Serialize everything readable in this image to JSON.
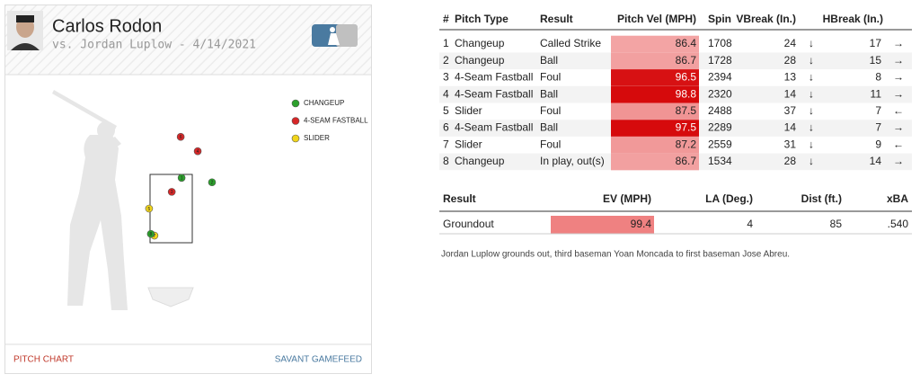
{
  "pitcher": {
    "name": "Carlos Rodon",
    "subtitle": "vs. Jordan Luplow - 4/14/2021"
  },
  "legend": [
    {
      "label": "CHANGEUP",
      "color": "#2ca02c"
    },
    {
      "label": "4-SEAM FASTBALL",
      "color": "#d62728"
    },
    {
      "label": "SLIDER",
      "color": "#f1d51b"
    }
  ],
  "pitches": [
    {
      "label": "1",
      "color": "#2ca02c",
      "location": [
        0.35,
        3.4
      ]
    },
    {
      "label": "2",
      "color": "#2ca02c",
      "location": [
        1.37,
        3.27
      ]
    },
    {
      "label": "3",
      "color": "#d62728",
      "location": [
        0.02,
        2.99
      ]
    },
    {
      "label": "4",
      "color": "#d62728",
      "location": [
        0.89,
        4.18
      ]
    },
    {
      "label": "5",
      "color": "#f1d51b",
      "location": [
        -0.74,
        2.5
      ]
    },
    {
      "label": "6",
      "color": "#d62728",
      "location": [
        0.32,
        4.6
      ]
    },
    {
      "label": "7",
      "color": "#f1d51b",
      "location": [
        -0.56,
        1.71
      ]
    },
    {
      "label": "8",
      "color": "#2ca02c",
      "location": [
        -0.68,
        1.76
      ]
    }
  ],
  "pitch_table": {
    "header": [
      "#",
      "Pitch Type",
      "Result",
      "Pitch Vel (MPH)",
      "Spin",
      "VBreak (In.)",
      "HBreak (In.)"
    ],
    "rows": [
      [
        "1",
        "Changeup",
        "Called Strike",
        "86.4",
        "1708",
        "24",
        "↓",
        "17",
        "→"
      ],
      [
        "2",
        "Changeup",
        "Ball",
        "86.7",
        "1728",
        "28",
        "↓",
        "15",
        "→"
      ],
      [
        "3",
        "4-Seam Fastball",
        "Foul",
        "96.5",
        "2394",
        "13",
        "↓",
        "8",
        "→"
      ],
      [
        "4",
        "4-Seam Fastball",
        "Ball",
        "98.8",
        "2320",
        "14",
        "↓",
        "11",
        "→"
      ],
      [
        "5",
        "Slider",
        "Foul",
        "87.5",
        "2488",
        "37",
        "↓",
        "7",
        "←"
      ],
      [
        "6",
        "4-Seam Fastball",
        "Ball",
        "97.5",
        "2289",
        "14",
        "↓",
        "7",
        "→"
      ],
      [
        "7",
        "Slider",
        "Foul",
        "87.2",
        "2559",
        "31",
        "↓",
        "9",
        "←"
      ],
      [
        "8",
        "Changeup",
        "In play, out(s)",
        "86.7",
        "1534",
        "28",
        "↓",
        "14",
        "→"
      ]
    ]
  },
  "result_table": {
    "header": [
      "Result",
      "EV (MPH)",
      "LA (Deg.)",
      "Dist (ft.)",
      "xBA"
    ],
    "rows": [
      [
        "Groundout",
        "99.4",
        "4",
        "85",
        ".540"
      ]
    ]
  },
  "description": "Jordan Luplow grounds out, third baseman Yoan Moncada to first baseman Jose Abreu.",
  "footer": {
    "left": "PITCH CHART",
    "right": "SAVANT GAMEFEED"
  }
}
